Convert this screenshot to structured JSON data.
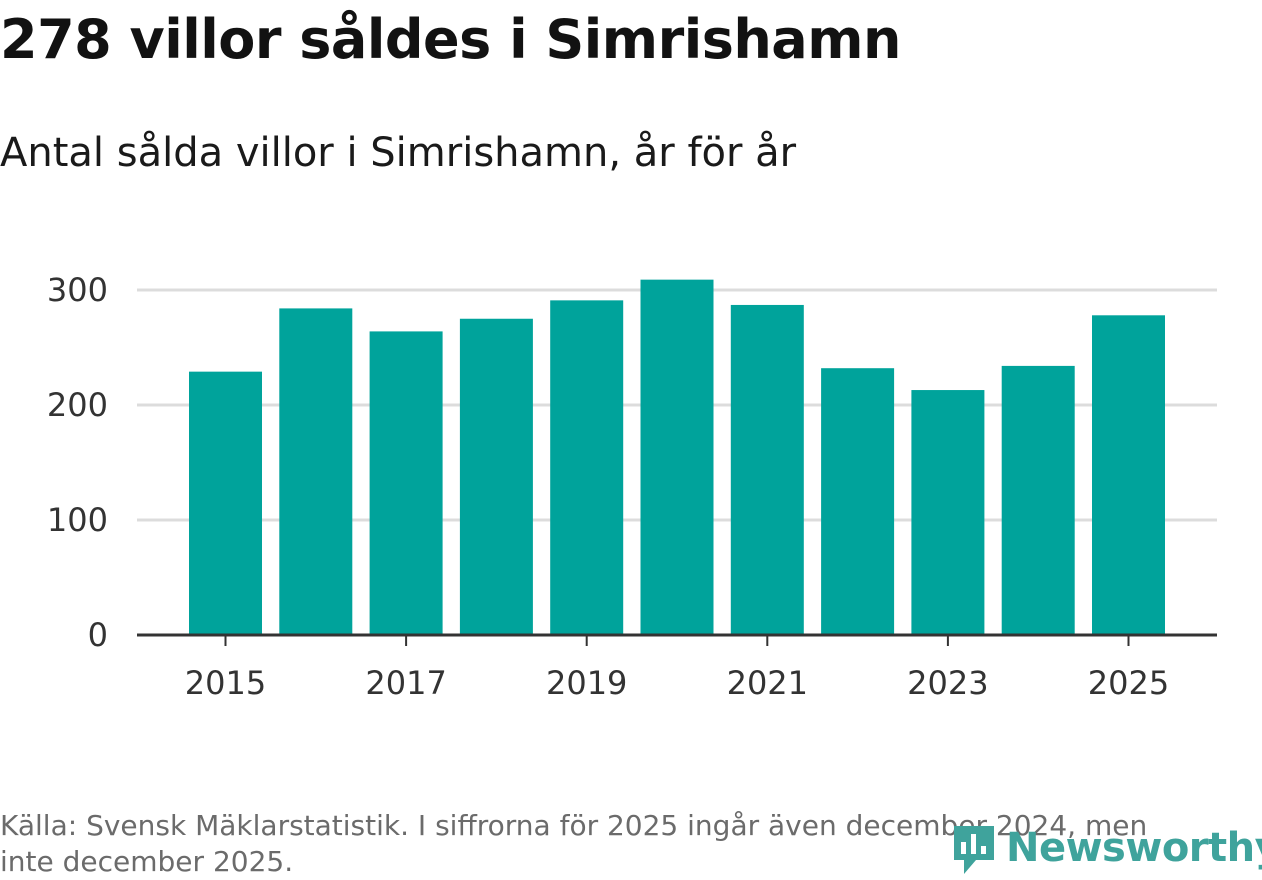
{
  "header": {
    "title": "278 villor såldes i Simrishamn",
    "subtitle": "Antal sålda villor i Simrishamn, år för år"
  },
  "chart_data": {
    "type": "bar",
    "categories": [
      "2015",
      "2016",
      "2017",
      "2018",
      "2019",
      "2020",
      "2021",
      "2022",
      "2023",
      "2024",
      "2025"
    ],
    "values": [
      229,
      284,
      264,
      275,
      291,
      309,
      287,
      232,
      213,
      234,
      278
    ],
    "x_tick_labels": [
      "2015",
      "2017",
      "2019",
      "2021",
      "2023",
      "2025"
    ],
    "y_ticks": [
      0,
      100,
      200,
      300
    ],
    "ylim": [
      0,
      330
    ],
    "bar_color": "#00a39b",
    "grid": true
  },
  "footer": {
    "source": "Källa: Svensk Mäklarstatistik. I siffrorna för 2025 ingår även december 2024, men inte december 2025.",
    "brand": "Newsworthy",
    "brand_icon": "newsworthy-logo-icon",
    "brand_color": "#3fa39c"
  }
}
